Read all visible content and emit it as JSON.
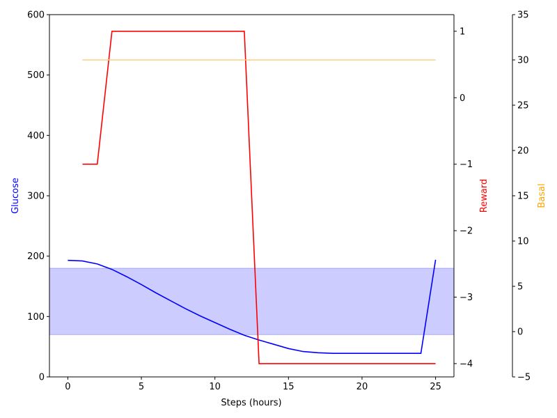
{
  "chart_data": {
    "type": "line",
    "xlabel": "Steps (hours)",
    "xlim": [
      -1.25,
      26.25
    ],
    "xticks": [
      0,
      5,
      10,
      15,
      20,
      25
    ],
    "grid": false,
    "target_band": {
      "y_from": 70,
      "y_to": 180,
      "axis": "glucose",
      "color": "#0000ff",
      "opacity": 0.2
    },
    "axes": {
      "glucose": {
        "label": "Glucose",
        "color": "#0000ff",
        "ylim": [
          0,
          600
        ],
        "ticks": [
          0,
          100,
          200,
          300,
          400,
          500,
          600
        ],
        "side": "left"
      },
      "reward": {
        "label": "Reward",
        "color": "#ff0000",
        "ylim": [
          -4.2,
          1.25
        ],
        "ticks": [
          1,
          0,
          -1,
          -2,
          -3,
          -4
        ],
        "side": "right"
      },
      "basal": {
        "label": "Basal",
        "color": "#ffa500",
        "ylim": [
          -5,
          35
        ],
        "ticks": [
          35,
          30,
          25,
          20,
          15,
          10,
          5,
          0,
          -5
        ],
        "side": "right-offset"
      }
    },
    "series": [
      {
        "axis": "glucose",
        "color": "#0000ff",
        "x": [
          0,
          1,
          2,
          3,
          4,
          5,
          6,
          7,
          8,
          9,
          10,
          11,
          12,
          13,
          14,
          15,
          16,
          17,
          18,
          19,
          20,
          21,
          22,
          23,
          24,
          25
        ],
        "y": [
          193,
          192,
          187,
          178,
          166,
          153,
          139,
          126,
          113,
          101,
          90,
          79,
          69,
          61,
          54,
          47,
          42,
          40,
          39,
          39,
          39,
          39,
          39,
          39,
          39,
          194
        ]
      },
      {
        "axis": "reward",
        "color": "#ff0000",
        "x": [
          1,
          2,
          3,
          4,
          5,
          6,
          7,
          8,
          9,
          10,
          11,
          12,
          13,
          14,
          15,
          16,
          17,
          18,
          19,
          20,
          21,
          22,
          23,
          24,
          25
        ],
        "y": [
          -1,
          -1,
          1,
          1,
          1,
          1,
          1,
          1,
          1,
          1,
          1,
          1,
          -4,
          -4,
          -4,
          -4,
          -4,
          -4,
          -4,
          -4,
          -4,
          -4,
          -4,
          -4,
          -4
        ]
      },
      {
        "axis": "basal",
        "color": "#ffcc88",
        "x": [
          1,
          25
        ],
        "y": [
          30,
          30
        ]
      }
    ]
  }
}
